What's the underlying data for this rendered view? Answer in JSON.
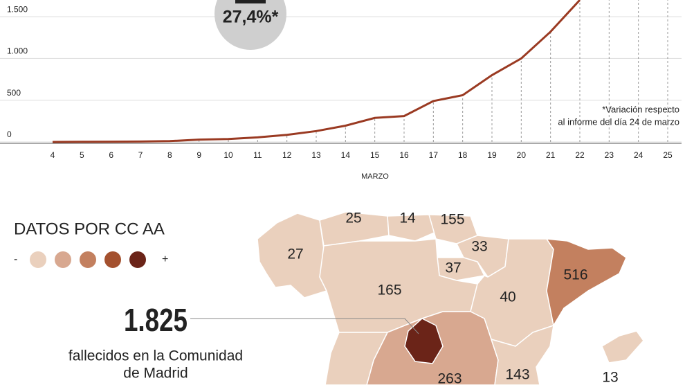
{
  "chart_data": {
    "type": "line",
    "x_label": "MARZO",
    "categories": [
      "4",
      "5",
      "6",
      "7",
      "8",
      "9",
      "10",
      "11",
      "12",
      "13",
      "14",
      "15",
      "16",
      "17",
      "18",
      "19",
      "20",
      "21",
      "22",
      "23",
      "24",
      "25"
    ],
    "series": [
      {
        "name": "Fallecidos",
        "color": "#9a3a22",
        "values": [
          0,
          2,
          3,
          5,
          10,
          28,
          35,
          55,
          85,
          130,
          195,
          288,
          310,
          490,
          560,
          800,
          1000,
          1320,
          1700,
          null,
          null,
          null
        ]
      }
    ],
    "ylim": [
      0,
      1700
    ],
    "yticks": [
      0,
      500,
      {
        "value": 1000,
        "label": "1.000"
      },
      {
        "value": 1500,
        "label": "1.500"
      }
    ],
    "grid": true,
    "annotation": "27,4%*",
    "note": [
      "*Variación respecto",
      "al informe del día 24 de marzo"
    ]
  },
  "map": {
    "legend_title": "DATOS POR CC AA",
    "legend_low": "-",
    "legend_high": "+",
    "legend_colors": [
      "#ead0bd",
      "#d8a890",
      "#c3805f",
      "#a4512f",
      "#6b2418"
    ],
    "highlight_value": "1.825",
    "highlight_text": [
      "fallecidos en la Comunidad",
      "de Madrid"
    ],
    "regions": [
      {
        "value": 27,
        "color": "#ead0bd"
      },
      {
        "value": 25,
        "color": "#ead0bd"
      },
      {
        "value": 14,
        "color": "#ead0bd"
      },
      {
        "value": 155,
        "color": "#ead0bd"
      },
      {
        "value": 33,
        "color": "#ead0bd"
      },
      {
        "value": 37,
        "color": "#ead0bd"
      },
      {
        "value": 165,
        "color": "#ead0bd"
      },
      {
        "value": 40,
        "color": "#ead0bd"
      },
      {
        "value": 516,
        "color": "#c3805f"
      },
      {
        "value": 263,
        "color": "#d8a890"
      },
      {
        "value": 143,
        "color": "#ead0bd"
      },
      {
        "value": 13,
        "color": "#ead0bd"
      }
    ],
    "madrid_color": "#6b2418"
  }
}
